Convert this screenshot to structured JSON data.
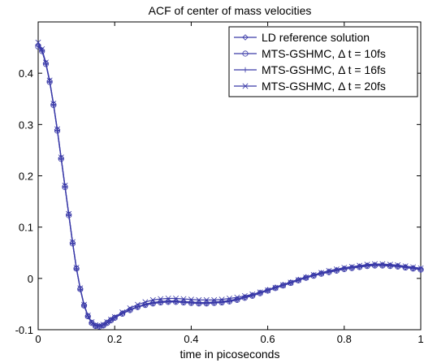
{
  "chart_data": {
    "type": "line",
    "title": "ACF of center of mass velocities",
    "xlabel": "time in picoseconds",
    "ylabel": "",
    "xlim": [
      0,
      1
    ],
    "ylim": [
      -0.1,
      0.5
    ],
    "xticks": [
      0,
      0.2,
      0.4,
      0.6,
      0.8,
      1
    ],
    "xtick_labels": [
      "0",
      "0.2",
      "0.4",
      "0.6",
      "0.8",
      "1"
    ],
    "yticks": [
      -0.1,
      0,
      0.1,
      0.2,
      0.3,
      0.4
    ],
    "ytick_labels": [
      "-0.1",
      "0",
      "0.1",
      "0.2",
      "0.3",
      "0.4"
    ],
    "grid": false,
    "legend_position": "top-right",
    "line_color": "#3a3aa8",
    "x": [
      0,
      0.01,
      0.02,
      0.03,
      0.04,
      0.05,
      0.06,
      0.07,
      0.08,
      0.09,
      0.1,
      0.11,
      0.12,
      0.13,
      0.14,
      0.15,
      0.16,
      0.17,
      0.18,
      0.19,
      0.2,
      0.22,
      0.24,
      0.26,
      0.28,
      0.3,
      0.32,
      0.34,
      0.36,
      0.38,
      0.4,
      0.42,
      0.44,
      0.46,
      0.48,
      0.5,
      0.52,
      0.54,
      0.56,
      0.58,
      0.6,
      0.62,
      0.64,
      0.66,
      0.68,
      0.7,
      0.72,
      0.74,
      0.76,
      0.78,
      0.8,
      0.82,
      0.84,
      0.86,
      0.88,
      0.9,
      0.92,
      0.94,
      0.96,
      0.98,
      1.0
    ],
    "series": [
      {
        "name": "LD reference solution",
        "marker": "diamond",
        "y": [
          0.455,
          0.445,
          0.42,
          0.385,
          0.34,
          0.29,
          0.235,
          0.18,
          0.125,
          0.07,
          0.02,
          -0.02,
          -0.052,
          -0.073,
          -0.086,
          -0.092,
          -0.093,
          -0.091,
          -0.086,
          -0.081,
          -0.076,
          -0.068,
          -0.061,
          -0.055,
          -0.051,
          -0.048,
          -0.046,
          -0.045,
          -0.045,
          -0.046,
          -0.047,
          -0.048,
          -0.048,
          -0.047,
          -0.046,
          -0.044,
          -0.041,
          -0.037,
          -0.033,
          -0.028,
          -0.023,
          -0.018,
          -0.013,
          -0.008,
          -0.003,
          0.002,
          0.006,
          0.01,
          0.013,
          0.016,
          0.019,
          0.021,
          0.023,
          0.025,
          0.026,
          0.026,
          0.025,
          0.024,
          0.022,
          0.02,
          0.018
        ]
      },
      {
        "name": "MTS-GSHMC, Δ t = 10fs",
        "marker": "circle",
        "y": [
          0.452,
          0.443,
          0.418,
          0.383,
          0.338,
          0.288,
          0.233,
          0.178,
          0.123,
          0.068,
          0.019,
          -0.021,
          -0.053,
          -0.074,
          -0.087,
          -0.093,
          -0.094,
          -0.092,
          -0.087,
          -0.082,
          -0.077,
          -0.069,
          -0.062,
          -0.056,
          -0.052,
          -0.049,
          -0.047,
          -0.046,
          -0.046,
          -0.047,
          -0.048,
          -0.049,
          -0.049,
          -0.048,
          -0.047,
          -0.045,
          -0.042,
          -0.038,
          -0.034,
          -0.029,
          -0.024,
          -0.019,
          -0.014,
          -0.009,
          -0.004,
          0.001,
          0.005,
          0.009,
          0.012,
          0.015,
          0.018,
          0.02,
          0.022,
          0.024,
          0.025,
          0.025,
          0.024,
          0.023,
          0.021,
          0.019,
          0.017
        ]
      },
      {
        "name": "MTS-GSHMC, Δ t = 16fs",
        "marker": "plus",
        "y": [
          0.454,
          0.444,
          0.419,
          0.384,
          0.339,
          0.289,
          0.234,
          0.179,
          0.124,
          0.069,
          0.019,
          -0.021,
          -0.052,
          -0.073,
          -0.086,
          -0.092,
          -0.093,
          -0.091,
          -0.086,
          -0.081,
          -0.076,
          -0.068,
          -0.061,
          -0.055,
          -0.05,
          -0.047,
          -0.045,
          -0.044,
          -0.044,
          -0.045,
          -0.046,
          -0.047,
          -0.047,
          -0.046,
          -0.045,
          -0.043,
          -0.04,
          -0.036,
          -0.032,
          -0.027,
          -0.022,
          -0.017,
          -0.012,
          -0.007,
          -0.002,
          0.003,
          0.007,
          0.011,
          0.014,
          0.017,
          0.02,
          0.022,
          0.024,
          0.026,
          0.027,
          0.027,
          0.026,
          0.025,
          0.023,
          0.021,
          0.019
        ]
      },
      {
        "name": "MTS-GSHMC, Δ t = 20fs",
        "marker": "x",
        "y": [
          0.46,
          0.447,
          0.421,
          0.386,
          0.341,
          0.291,
          0.236,
          0.181,
          0.126,
          0.071,
          0.021,
          -0.019,
          -0.051,
          -0.072,
          -0.085,
          -0.091,
          -0.092,
          -0.09,
          -0.085,
          -0.08,
          -0.075,
          -0.066,
          -0.058,
          -0.051,
          -0.046,
          -0.042,
          -0.04,
          -0.039,
          -0.039,
          -0.04,
          -0.041,
          -0.042,
          -0.042,
          -0.042,
          -0.041,
          -0.039,
          -0.037,
          -0.034,
          -0.031,
          -0.027,
          -0.023,
          -0.018,
          -0.013,
          -0.008,
          -0.003,
          0.002,
          0.007,
          0.011,
          0.015,
          0.018,
          0.021,
          0.023,
          0.025,
          0.027,
          0.028,
          0.028,
          0.027,
          0.026,
          0.024,
          0.022,
          0.02
        ]
      }
    ]
  }
}
